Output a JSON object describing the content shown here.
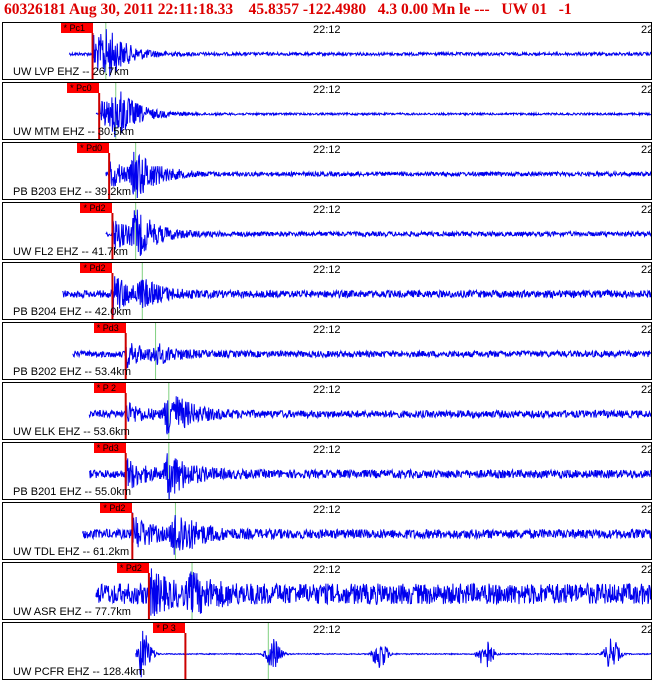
{
  "header": {
    "event_id": "60326181",
    "datetime": "Aug 30, 2011 22:11:18.33",
    "lat": "45.8357",
    "lon": "-122.4980",
    "magnitude": "4.3 0.00 Mn le ---",
    "network": "UW 01",
    "flag": "-1"
  },
  "colors": {
    "trace": "#0000ee",
    "pick": "#ff0000",
    "header": "#dd0000",
    "marker": "#7fd07f",
    "pickline": "#cc0000"
  },
  "chart_data": {
    "type": "line",
    "title": "60326181 Aug 30, 2011 22:11:18.33 45.8357 -122.4980 4.3 0.00 Mn le --- UW 01 -1",
    "time_tick_left": "22:12",
    "time_tick_right": "22",
    "series": [
      {
        "name": "UW LVP EHZ -- 26.7km",
        "pick_label": "* Pc1",
        "pick_time_s": 13.5,
        "arrival_time_s": 13.5,
        "coda_time_s": 15.5,
        "data_start_s": 10,
        "amp_p": 0.9,
        "amp_s": 0.7,
        "noise": 0.06
      },
      {
        "name": "UW MTM EHZ -- 30.5km",
        "pick_label": "* Pc0",
        "pick_time_s": 14.5,
        "arrival_time_s": 14.5,
        "coda_time_s": 17,
        "data_start_s": 14,
        "amp_p": 0.7,
        "amp_s": 0.9,
        "noise": 0.04
      },
      {
        "name": "PB B203 EHZ -- 39.2km",
        "pick_label": "* Pd0",
        "pick_time_s": 16,
        "arrival_time_s": 16,
        "coda_time_s": 20,
        "data_start_s": 15.5,
        "amp_p": 0.6,
        "amp_s": 0.9,
        "noise": 0.08
      },
      {
        "name": "UW FL2 EHZ -- 41.7km",
        "pick_label": "* Pd2",
        "pick_time_s": 16.5,
        "arrival_time_s": 16.5,
        "coda_time_s": 20,
        "data_start_s": 15.5,
        "amp_p": 0.7,
        "amp_s": 0.8,
        "noise": 0.09
      },
      {
        "name": "PB B204 EHZ -- 42.0km",
        "pick_label": "* Pd2",
        "pick_time_s": 16.5,
        "arrival_time_s": 16.5,
        "coda_time_s": 21,
        "data_start_s": 9,
        "amp_p": 0.8,
        "amp_s": 0.4,
        "noise": 0.14
      },
      {
        "name": "PB B202 EHZ -- 53.4km",
        "pick_label": "* Pd3",
        "pick_time_s": 18.5,
        "arrival_time_s": 18.5,
        "coda_time_s": 23,
        "data_start_s": 10.5,
        "amp_p": 0.5,
        "amp_s": 0.3,
        "noise": 0.12
      },
      {
        "name": "UW ELK EHZ -- 53.6km",
        "pick_label": "* P 2",
        "pick_time_s": 18.5,
        "arrival_time_s": 18.5,
        "coda_time_s": 25,
        "data_start_s": 13,
        "amp_p": 0.4,
        "amp_s": 0.9,
        "noise": 0.14
      },
      {
        "name": "PB B201 EHZ -- 55.0km",
        "pick_label": "* Pd3",
        "pick_time_s": 18.5,
        "arrival_time_s": 18.5,
        "coda_time_s": 25,
        "data_start_s": 13,
        "amp_p": 0.6,
        "amp_s": 0.8,
        "noise": 0.16
      },
      {
        "name": "UW TDL EHZ -- 61.2km",
        "pick_label": "* Pd2",
        "pick_time_s": 19.5,
        "arrival_time_s": 19.5,
        "coda_time_s": 26,
        "data_start_s": 12,
        "amp_p": 0.7,
        "amp_s": 0.9,
        "noise": 0.18
      },
      {
        "name": "UW ASR EHZ -- 77.7km",
        "pick_label": "* Pd2",
        "pick_time_s": 22,
        "arrival_time_s": 22,
        "coda_time_s": 28.5,
        "data_start_s": 14,
        "amp_p": 0.7,
        "amp_s": 0.5,
        "noise": 0.4
      },
      {
        "name": "UW PCFR EHZ -- 128.4km",
        "pick_label": "* P 3",
        "pick_time_s": 27.5,
        "arrival_time_s": 20.5,
        "coda_time_s": 40,
        "data_start_s": 20,
        "amp_p": 0.7,
        "amp_s": 0.6,
        "noise": 0.02
      }
    ],
    "x_range_s": [
      0,
      98
    ],
    "grid": false
  }
}
